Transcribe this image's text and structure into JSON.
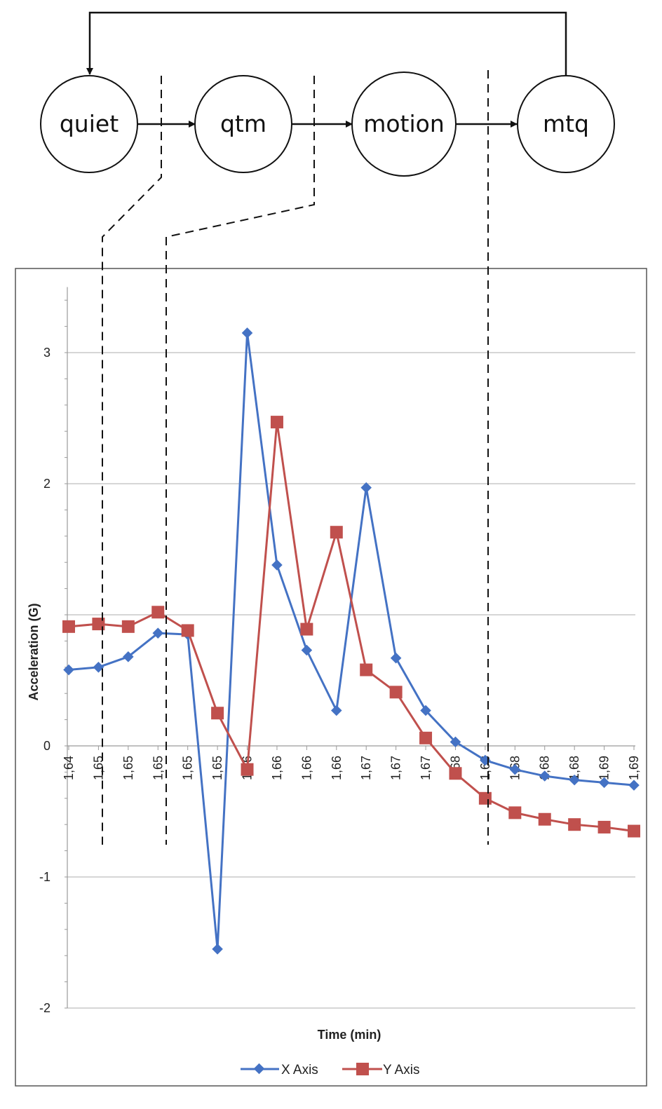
{
  "diagram": {
    "states": [
      {
        "id": "quiet",
        "label": "quiet"
      },
      {
        "id": "qtm",
        "label": "qtm"
      },
      {
        "id": "motion",
        "label": "motion"
      },
      {
        "id": "mtq",
        "label": "mtq"
      }
    ],
    "transitions": [
      {
        "from": "quiet",
        "to": "qtm"
      },
      {
        "from": "qtm",
        "to": "motion"
      },
      {
        "from": "motion",
        "to": "mtq"
      },
      {
        "from": "mtq",
        "to": "quiet"
      }
    ]
  },
  "chart_data": {
    "type": "line",
    "xlabel": "Time (min)",
    "ylabel": "Acceleration (G)",
    "ylim": [
      -2,
      3.5
    ],
    "y_ticks": [
      -2,
      -1,
      0,
      2,
      3
    ],
    "grid": true,
    "legend_position": "bottom",
    "categories": [
      "1,64",
      "1,65",
      "1,65",
      "1,65",
      "1,65",
      "1,65",
      "1,66",
      "1,66",
      "1,66",
      "1,66",
      "1,67",
      "1,67",
      "1,67",
      "1,68",
      "1,68",
      "1,68",
      "1,68",
      "1,68",
      "1,69",
      "1,69"
    ],
    "series": [
      {
        "name": "X Axis",
        "color": "#4472c4",
        "marker": "diamond",
        "values": [
          0.58,
          0.6,
          0.68,
          0.86,
          0.85,
          -1.55,
          3.15,
          1.38,
          0.73,
          0.27,
          1.97,
          0.67,
          0.27,
          0.03,
          -0.11,
          -0.18,
          -0.23,
          -0.26,
          -0.28,
          -0.3
        ]
      },
      {
        "name": "Y Axis",
        "color": "#c0504d",
        "marker": "square",
        "values": [
          0.91,
          0.93,
          0.91,
          1.02,
          0.88,
          0.25,
          -0.18,
          2.47,
          0.89,
          1.63,
          0.58,
          0.41,
          0.06,
          -0.21,
          -0.4,
          -0.51,
          -0.56,
          -0.6,
          -0.62,
          -0.65
        ]
      }
    ]
  }
}
